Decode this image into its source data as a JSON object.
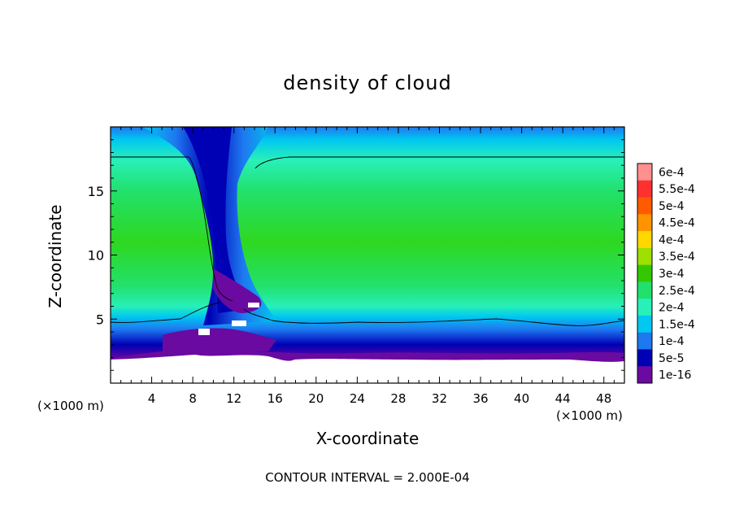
{
  "chart_data": {
    "type": "heatmap",
    "title": "density of cloud",
    "xlabel": "X-coordinate",
    "ylabel": "Z-coordinate",
    "x_unit_left": "(×1000 m)",
    "x_unit_right": "(×1000 m)",
    "footer": "CONTOUR INTERVAL = 2.000E-04",
    "xlim": [
      0,
      50
    ],
    "ylim": [
      0,
      20
    ],
    "x_ticks": [
      4,
      8,
      12,
      16,
      20,
      24,
      28,
      32,
      36,
      40,
      44,
      48
    ],
    "y_ticks": [
      5,
      10,
      15
    ],
    "colorbar": {
      "labels": [
        "6e-4",
        "5.5e-4",
        "5e-4",
        "4.5e-4",
        "4e-4",
        "3.5e-4",
        "3e-4",
        "2.5e-4",
        "2e-4",
        "1.5e-4",
        "1e-4",
        "5e-5",
        "1e-16"
      ],
      "colors": [
        "#ff9090",
        "#ff3030",
        "#ff5a00",
        "#ff9400",
        "#ffd800",
        "#9ee000",
        "#33c800",
        "#22e06c",
        "#28f0b8",
        "#00c8f0",
        "#1e78f0",
        "#0000b4",
        "#6a0aa0"
      ]
    },
    "contour_levels_drawn": [
      "2e-4"
    ]
  }
}
